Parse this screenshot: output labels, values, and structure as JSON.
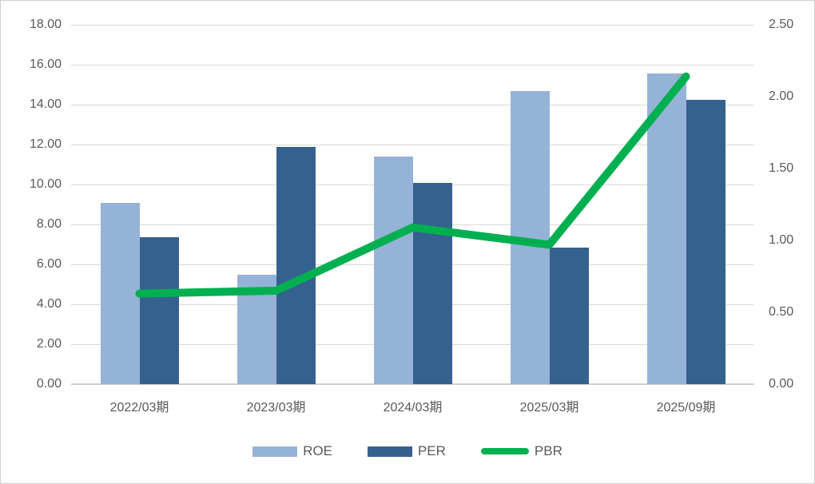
{
  "chart_data": {
    "type": "combo-bar-line",
    "title": "",
    "categories": [
      "2022/03期",
      "2023/03期",
      "2024/03期",
      "2025/03期",
      "2025/09期"
    ],
    "series": [
      {
        "name": "ROE",
        "type": "bar",
        "axis": "left",
        "color": "#95B3D7",
        "values": [
          9.1,
          5.5,
          11.4,
          14.7,
          15.55
        ]
      },
      {
        "name": "PER",
        "type": "bar",
        "axis": "left",
        "color": "#35618F",
        "values": [
          7.35,
          11.9,
          10.1,
          6.85,
          14.25
        ]
      },
      {
        "name": "PBR",
        "type": "line",
        "axis": "right",
        "color": "#00B050",
        "values": [
          0.63,
          0.65,
          1.09,
          0.97,
          2.14
        ]
      }
    ],
    "left_axis": {
      "min": 0,
      "max": 18,
      "step": 2,
      "tick_labels": [
        "0.00",
        "2.00",
        "4.00",
        "6.00",
        "8.00",
        "10.00",
        "12.00",
        "14.00",
        "16.00",
        "18.00"
      ]
    },
    "right_axis": {
      "min": 0,
      "max": 2.5,
      "step": 0.5,
      "tick_labels": [
        "0.00",
        "0.50",
        "1.00",
        "1.50",
        "2.00",
        "2.50"
      ]
    },
    "grid": true,
    "legend_position": "bottom",
    "colors": {
      "gridline": "#d9d9d9",
      "baseline": "#d0d0d0",
      "axis_text": "#595959",
      "background": "#ffffff"
    }
  }
}
